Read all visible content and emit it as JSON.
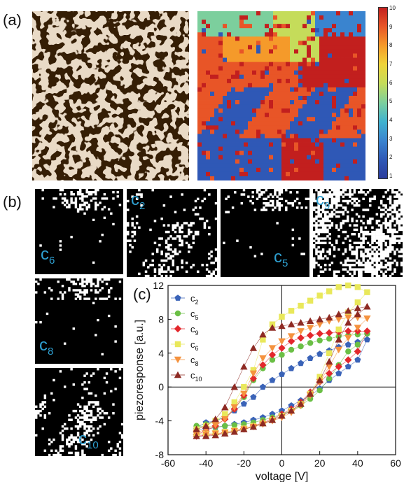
{
  "figure": {
    "panel_a": "(a)",
    "panel_b": "(b)",
    "panel_c": "(c)"
  },
  "colorbar": {
    "ticks": [
      "1",
      "2",
      "3",
      "4",
      "5",
      "6",
      "7",
      "8",
      "9",
      "10"
    ],
    "colors": [
      "#2b3c9c",
      "#2f58b6",
      "#3a84cf",
      "#3fb2cf",
      "#7ccf9d",
      "#c5dc5a",
      "#efd43a",
      "#f59a2a",
      "#e85527",
      "#c21f1e"
    ]
  },
  "cluster_maps": [
    {
      "label": "c",
      "sub": "6"
    },
    {
      "label": "c",
      "sub": "2"
    },
    {
      "label": "c",
      "sub": "5"
    },
    {
      "label": "c",
      "sub": "9"
    },
    {
      "label": "c",
      "sub": "8"
    },
    {
      "label": "c",
      "sub": "10"
    }
  ],
  "chart_data": {
    "type": "scatter",
    "xlabel": "voltage [V]",
    "ylabel": "piezoresponse [a.u.]",
    "xlim": [
      -60,
      60
    ],
    "ylim": [
      -8,
      12
    ],
    "xticks": [
      -60,
      -40,
      -20,
      0,
      20,
      40,
      60
    ],
    "yticks": [
      -8,
      -4,
      0,
      4,
      8,
      12
    ],
    "grid": false,
    "legend_position": "top-left",
    "series": [
      {
        "name": "c2",
        "label": "c",
        "sub": "2",
        "color": "#3a63b8",
        "marker": "pentagon",
        "x": [
          -45,
          -40,
          -35,
          -30,
          -25,
          -20,
          -15,
          -10,
          -5,
          0,
          5,
          10,
          15,
          20,
          25,
          30,
          35,
          40,
          45,
          40,
          35,
          30,
          25,
          20,
          15,
          10,
          5,
          0,
          -5,
          -10,
          -15,
          -20,
          -25,
          -30,
          -35,
          -40,
          -45
        ],
        "y": [
          -4.8,
          -4.2,
          -4.0,
          -3.5,
          -2.8,
          -2.0,
          -1.2,
          0.0,
          0.8,
          1.5,
          2.2,
          2.8,
          3.4,
          3.9,
          4.3,
          4.7,
          5.0,
          5.3,
          5.6,
          3.2,
          2.4,
          1.6,
          0.8,
          -0.2,
          -1.0,
          -1.6,
          -2.2,
          -2.8,
          -3.2,
          -3.6,
          -3.9,
          -4.2,
          -4.4,
          -4.6,
          -4.8,
          -5.0,
          -5.0
        ]
      },
      {
        "name": "c5",
        "label": "c",
        "sub": "5",
        "color": "#6abf45",
        "marker": "circle",
        "x": [
          -45,
          -40,
          -35,
          -30,
          -25,
          -20,
          -15,
          -10,
          -5,
          0,
          5,
          10,
          15,
          20,
          25,
          30,
          35,
          40,
          45,
          40,
          35,
          30,
          25,
          20,
          15,
          10,
          5,
          0,
          -5,
          -10,
          -15,
          -20,
          -25,
          -30,
          -35,
          -40,
          -45
        ],
        "y": [
          -4.6,
          -4.4,
          -4.0,
          -3.6,
          -2.6,
          -1.2,
          0.8,
          2.2,
          3.2,
          3.8,
          4.4,
          4.8,
          5.2,
          5.5,
          5.7,
          6.0,
          6.1,
          6.2,
          6.3,
          5.0,
          4.2,
          2.6,
          1.0,
          -0.4,
          -1.4,
          -2.2,
          -2.8,
          -3.2,
          -3.6,
          -3.9,
          -4.2,
          -4.4,
          -4.5,
          -4.6,
          -4.7,
          -4.7,
          -4.6
        ]
      },
      {
        "name": "c9",
        "label": "c",
        "sub": "9",
        "color": "#e3272c",
        "marker": "diamond",
        "x": [
          -45,
          -40,
          -35,
          -30,
          -25,
          -20,
          -15,
          -10,
          -5,
          0,
          5,
          10,
          15,
          20,
          25,
          30,
          35,
          40,
          45,
          40,
          35,
          30,
          25,
          20,
          15,
          10,
          5,
          0,
          -5,
          -10,
          -15,
          -20,
          -25,
          -30,
          -35,
          -40,
          -45
        ],
        "y": [
          -5.6,
          -5.2,
          -4.6,
          -3.8,
          -2.6,
          -1.0,
          1.0,
          2.6,
          3.8,
          4.6,
          5.4,
          5.8,
          6.1,
          6.3,
          6.4,
          6.5,
          6.6,
          6.6,
          6.6,
          4.2,
          3.2,
          2.4,
          1.6,
          0.6,
          -0.6,
          -1.8,
          -2.6,
          -3.2,
          -3.8,
          -4.2,
          -4.6,
          -4.9,
          -5.2,
          -5.4,
          -5.6,
          -5.7,
          -5.8
        ]
      },
      {
        "name": "c6",
        "label": "c",
        "sub": "6",
        "color": "#e9e85a",
        "marker": "square",
        "x": [
          -45,
          -40,
          -35,
          -30,
          -25,
          -20,
          -15,
          -10,
          -5,
          0,
          5,
          10,
          15,
          20,
          25,
          30,
          35,
          40,
          45,
          40,
          35,
          30,
          25,
          20,
          15,
          10,
          5,
          0,
          -5,
          -10,
          -15,
          -20,
          -25,
          -30,
          -35,
          -40,
          -45
        ],
        "y": [
          -5.0,
          -4.6,
          -4.0,
          -3.2,
          -1.8,
          0.0,
          2.0,
          5.6,
          7.4,
          8.3,
          9.0,
          9.6,
          10.2,
          10.8,
          11.3,
          11.8,
          12.0,
          11.8,
          11.2,
          10.0,
          8.8,
          6.8,
          4.0,
          1.2,
          -0.8,
          -2.0,
          -2.8,
          -3.4,
          -3.9,
          -4.3,
          -4.6,
          -4.9,
          -5.1,
          -5.3,
          -5.4,
          -5.5,
          -5.5
        ]
      },
      {
        "name": "c8",
        "label": "c",
        "sub": "8",
        "color": "#f5923e",
        "marker": "triangle-down",
        "x": [
          -45,
          -40,
          -35,
          -30,
          -25,
          -20,
          -15,
          -10,
          -5,
          0,
          5,
          10,
          15,
          20,
          25,
          30,
          35,
          40,
          45,
          40,
          35,
          30,
          25,
          20,
          15,
          10,
          5,
          0,
          -5,
          -10,
          -15,
          -20,
          -25,
          -30,
          -35,
          -40,
          -45
        ],
        "y": [
          -5.4,
          -5.0,
          -4.5,
          -3.8,
          -2.4,
          -0.8,
          1.6,
          3.4,
          4.6,
          5.4,
          6.0,
          6.6,
          7.0,
          7.4,
          7.8,
          8.0,
          8.2,
          8.2,
          8.1,
          7.0,
          5.8,
          4.4,
          2.4,
          0.6,
          -1.0,
          -2.2,
          -3.0,
          -3.6,
          -4.0,
          -4.4,
          -4.7,
          -5.0,
          -5.2,
          -5.4,
          -5.5,
          -5.6,
          -5.6
        ]
      },
      {
        "name": "c10",
        "label": "c",
        "sub": "10",
        "color": "#8e2a23",
        "marker": "triangle-up",
        "x": [
          -45,
          -40,
          -35,
          -30,
          -25,
          -20,
          -15,
          -10,
          -5,
          0,
          5,
          10,
          15,
          20,
          25,
          30,
          35,
          40,
          45,
          40,
          35,
          30,
          25,
          20,
          15,
          10,
          5,
          0,
          -5,
          -10,
          -15,
          -20,
          -25,
          -30,
          -35,
          -40,
          -45
        ],
        "y": [
          -5.0,
          -4.6,
          -3.8,
          -2.4,
          0.0,
          2.4,
          4.6,
          6.2,
          7.0,
          7.2,
          7.4,
          7.6,
          7.8,
          8.0,
          8.2,
          8.6,
          9.0,
          9.3,
          9.5,
          8.6,
          7.6,
          5.6,
          3.0,
          0.8,
          -0.8,
          -2.0,
          -2.8,
          -3.4,
          -3.9,
          -4.3,
          -4.7,
          -5.0,
          -5.3,
          -5.5,
          -5.7,
          -5.8,
          -5.8
        ]
      }
    ]
  }
}
